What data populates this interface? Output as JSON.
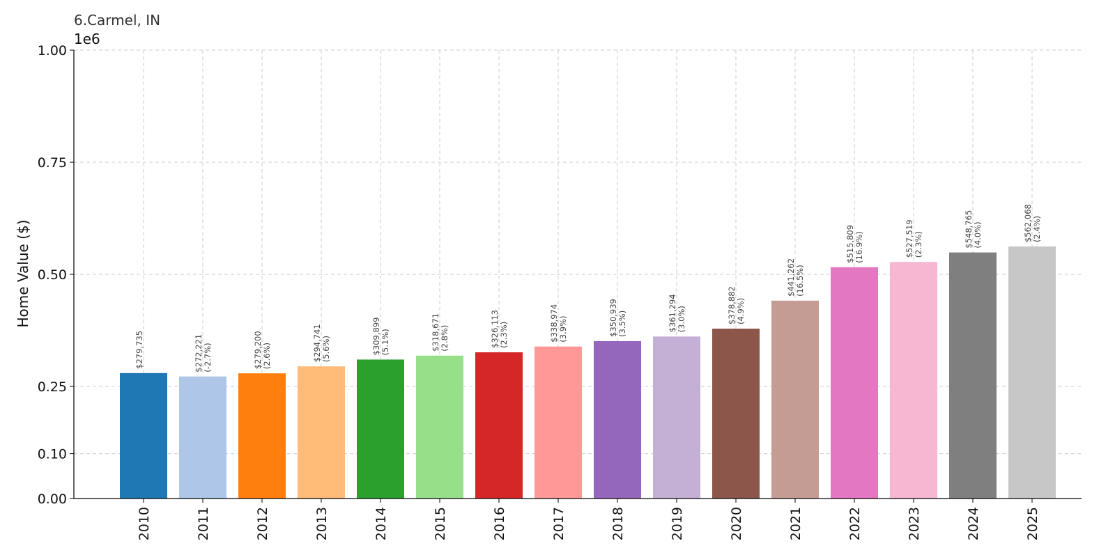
{
  "chart_data": {
    "type": "bar",
    "title": "6.Carmel, IN",
    "ylabel": "Home Value ($)",
    "xlabel": "",
    "y_exponent_label": "1e6",
    "ylim": [
      0,
      1000000
    ],
    "yticks": [
      0,
      100000,
      250000,
      500000,
      750000,
      1000000
    ],
    "ytick_labels": [
      "0.00",
      "0.10",
      "0.25",
      "0.50",
      "0.75",
      "1.00"
    ],
    "grid": true,
    "categories": [
      "2010",
      "2011",
      "2012",
      "2013",
      "2014",
      "2015",
      "2016",
      "2017",
      "2018",
      "2019",
      "2020",
      "2021",
      "2022",
      "2023",
      "2024",
      "2025"
    ],
    "values": [
      279735,
      272221,
      279200,
      294741,
      309899,
      318671,
      326113,
      338974,
      350939,
      361294,
      378882,
      441262,
      515809,
      527519,
      548765,
      562068
    ],
    "value_labels": [
      "$279,735",
      "$272,221",
      "$279,200",
      "$294,741",
      "$309,899",
      "$318,671",
      "$326,113",
      "$338,974",
      "$350,939",
      "$361,294",
      "$378,882",
      "$441,262",
      "$515,809",
      "$527,519",
      "$548,765",
      "$562,068"
    ],
    "change_labels": [
      "",
      "(-2.7%)",
      "(2.6%)",
      "(5.6%)",
      "(5.1%)",
      "(2.8%)",
      "(2.3%)",
      "(3.9%)",
      "(3.5%)",
      "(3.0%)",
      "(4.9%)",
      "(16.5%)",
      "(16.9%)",
      "(2.3%)",
      "(4.0%)",
      "(2.4%)"
    ],
    "colors": [
      "#1f77b4",
      "#aec7e8",
      "#ff7f0e",
      "#ffbb78",
      "#2ca02c",
      "#98df8a",
      "#d62728",
      "#ff9896",
      "#9467bd",
      "#c5b0d5",
      "#8c564b",
      "#c49c94",
      "#e377c2",
      "#f7b6d2",
      "#7f7f7f",
      "#c7c7c7"
    ]
  }
}
